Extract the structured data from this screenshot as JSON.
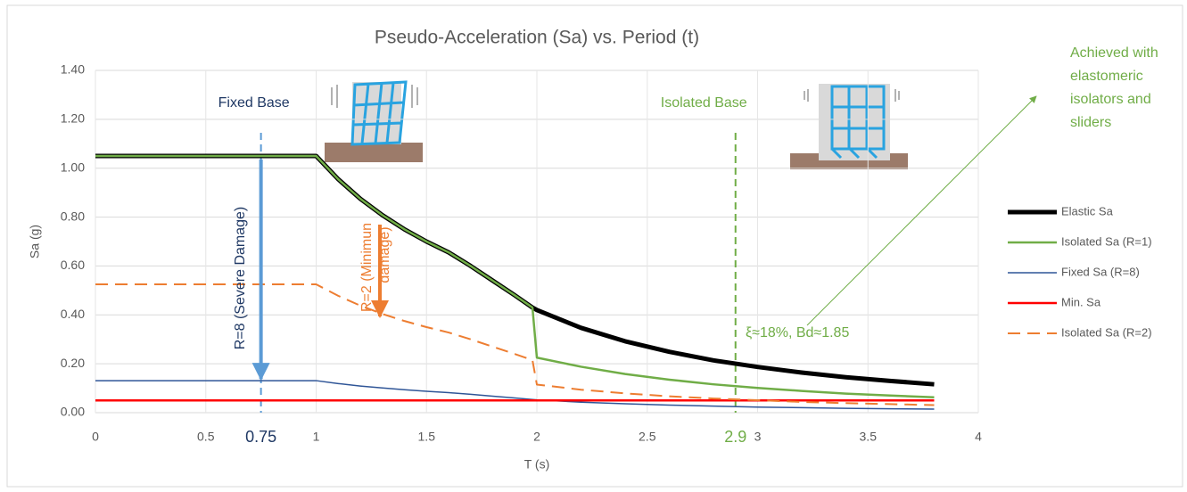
{
  "chart_data": {
    "type": "line",
    "title": "Pseudo-Acceleration (Sa) vs. Period (t)",
    "x_label": "T (s)",
    "y_label": "Sa (g)",
    "xlim": [
      0,
      4
    ],
    "ylim": [
      0,
      1.4
    ],
    "xticks": [
      0,
      0.5,
      1,
      1.5,
      2,
      2.5,
      3,
      3.5,
      4
    ],
    "yticks": [
      {
        "value": 0,
        "label": "0.00"
      },
      {
        "value": 0.2,
        "label": "0.20"
      },
      {
        "value": 0.4,
        "label": "0.40"
      },
      {
        "value": 0.6,
        "label": "0.60"
      },
      {
        "value": 0.8,
        "label": "0.80"
      },
      {
        "value": 1,
        "label": "1.00"
      },
      {
        "value": 1.2,
        "label": "1.20"
      },
      {
        "value": 1.4,
        "label": "1.40"
      }
    ],
    "grid": true,
    "legend": "right",
    "x": [
      0,
      0.5,
      1,
      1.1,
      1.2,
      1.3,
      1.4,
      1.5,
      1.6,
      1.7,
      1.8,
      1.9,
      1.98,
      2,
      2.2,
      2.4,
      2.6,
      2.8,
      3,
      3.2,
      3.4,
      3.6,
      3.8
    ],
    "series": [
      {
        "name": "Elastic Sa",
        "color": "#000000",
        "width": 5,
        "dash": false,
        "values": [
          1.05,
          1.05,
          1.05,
          0.955,
          0.875,
          0.808,
          0.75,
          0.7,
          0.656,
          0.6,
          0.54,
          0.48,
          0.43,
          0.42,
          0.347,
          0.292,
          0.249,
          0.214,
          0.187,
          0.164,
          0.145,
          0.13,
          0.116
        ]
      },
      {
        "name": "Isolated Sa (R=1)",
        "color": "#70ad47",
        "width": 2.5,
        "dash": false,
        "values": [
          1.05,
          1.05,
          1.05,
          0.955,
          0.875,
          0.808,
          0.75,
          0.7,
          0.656,
          0.6,
          0.54,
          0.48,
          0.43,
          0.225,
          0.188,
          0.158,
          0.135,
          0.116,
          0.101,
          0.089,
          0.078,
          0.07,
          0.063
        ]
      },
      {
        "name": "Fixed Sa (R=8)",
        "color": "#2f5597",
        "width": 1.5,
        "dash": false,
        "values": [
          0.131,
          0.131,
          0.131,
          0.119,
          0.109,
          0.101,
          0.094,
          0.0875,
          0.082,
          0.075,
          0.0675,
          0.06,
          0.054,
          0.0525,
          0.043,
          0.0365,
          0.031,
          0.027,
          0.023,
          0.0205,
          0.018,
          0.016,
          0.0145
        ]
      },
      {
        "name": "Min. Sa",
        "color": "#ff0000",
        "width": 2.5,
        "dash": false,
        "values": [
          0.05,
          0.05,
          0.05,
          0.05,
          0.05,
          0.05,
          0.05,
          0.05,
          0.05,
          0.05,
          0.05,
          0.05,
          0.05,
          0.05,
          0.05,
          0.05,
          0.05,
          0.05,
          0.05,
          0.05,
          0.05,
          0.05,
          0.05
        ]
      },
      {
        "name": "Isolated Sa (R=2)",
        "color": "#ed7d31",
        "width": 2,
        "dash": true,
        "values": [
          0.525,
          0.525,
          0.525,
          0.478,
          0.438,
          0.404,
          0.375,
          0.35,
          0.328,
          0.3,
          0.27,
          0.24,
          0.215,
          0.115,
          0.094,
          0.079,
          0.067,
          0.058,
          0.051,
          0.044,
          0.039,
          0.035,
          0.031
        ]
      }
    ],
    "markers": [
      {
        "x": 0.75,
        "label": "0.75",
        "color": "#5b9bd5",
        "label_color": "#1f3864",
        "caption": "Fixed Base"
      },
      {
        "x": 2.9,
        "label": "2.9",
        "color": "#70ad47",
        "label_color": "#70ad47",
        "caption": "Isolated Base"
      }
    ],
    "annotations": {
      "fixed_damage": "R=8 (Severe Damage)",
      "isolated_damage": [
        "R=2 (Minimun",
        "damage)"
      ],
      "isolation": "ξ≈18%, Bd≈1.85",
      "achieved": [
        "Achieved with",
        "elastomeric",
        "isolators and",
        "sliders"
      ]
    }
  }
}
